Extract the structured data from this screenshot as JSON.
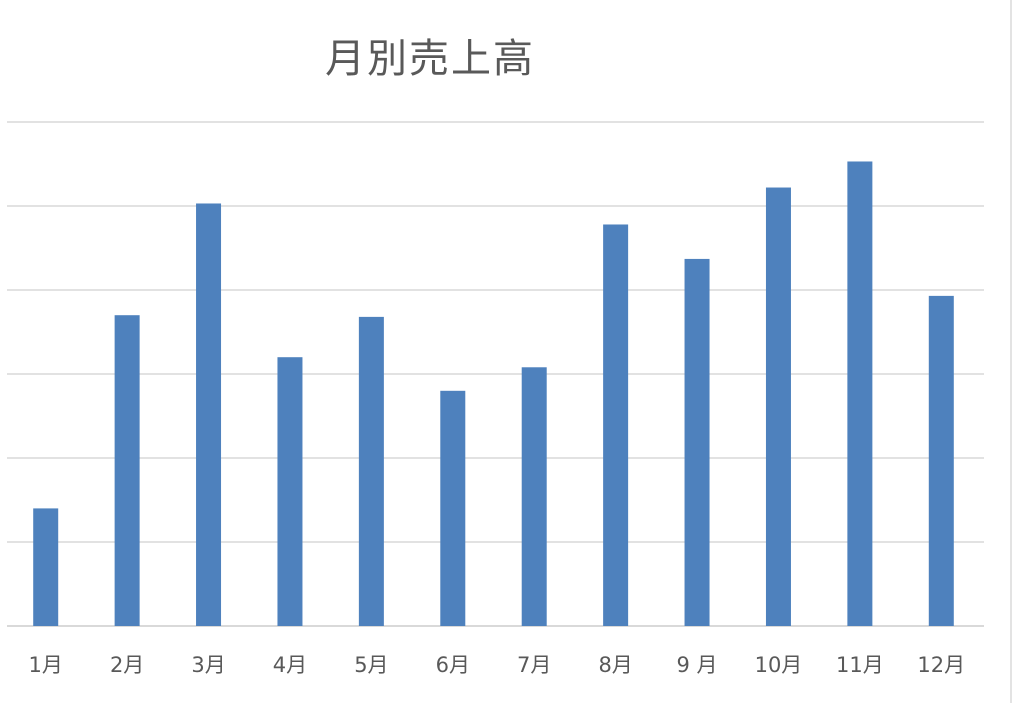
{
  "chart_data": {
    "type": "bar",
    "title": "月別売上高",
    "categories": [
      "1月",
      "2月",
      "3月",
      "4月",
      "5月",
      "6月",
      "7月",
      "8月",
      "9 月",
      "10月",
      "11月",
      "12月"
    ],
    "values": [
      14,
      37,
      50.3,
      32,
      36.8,
      28,
      30.8,
      47.8,
      43.7,
      52.2,
      55.3,
      39.3
    ],
    "ylim": [
      0,
      60
    ],
    "y_axis_labels": false,
    "grid": true,
    "legend": "none",
    "bar_color": "#4e81bd",
    "grid_color": "#d9d9d9"
  }
}
